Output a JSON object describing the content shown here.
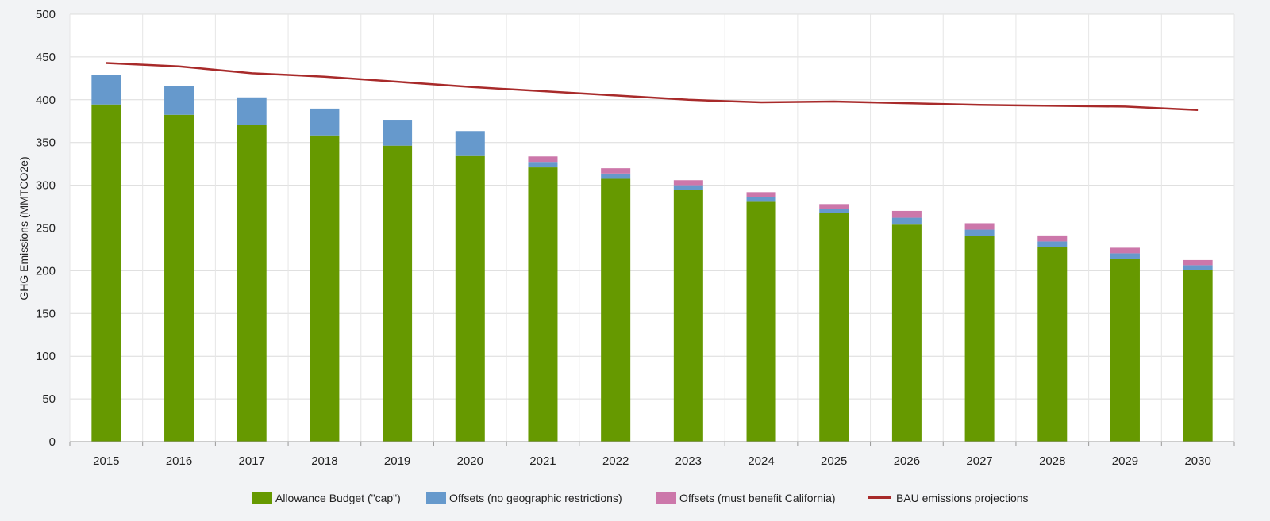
{
  "chart_data": {
    "type": "bar",
    "stacked": true,
    "title": "",
    "xlabel": "",
    "ylabel": "GHG Emissions (MMTCO2e)",
    "ylim": [
      0,
      500
    ],
    "yticks": [
      0,
      50,
      100,
      150,
      200,
      250,
      300,
      350,
      400,
      450,
      500
    ],
    "grid": true,
    "legend_position": "bottom",
    "categories": [
      "2015",
      "2016",
      "2017",
      "2018",
      "2019",
      "2020",
      "2021",
      "2022",
      "2023",
      "2024",
      "2025",
      "2026",
      "2027",
      "2028",
      "2029",
      "2030"
    ],
    "series": [
      {
        "name": "Allowance Budget (\"cap\")",
        "kind": "bar",
        "color": "#669900",
        "values": [
          394.5,
          382.4,
          370.4,
          358.3,
          346.3,
          334.2,
          320.9,
          307.5,
          294.1,
          280.7,
          267.4,
          254.0,
          240.6,
          227.3,
          213.9,
          200.5
        ]
      },
      {
        "name": "Offsets (no geographic restrictions)",
        "kind": "bar",
        "color": "#6699cc",
        "values": [
          34.5,
          33.5,
          32.4,
          31.4,
          30.3,
          29.2,
          6.4,
          6.2,
          5.9,
          5.6,
          5.3,
          8.0,
          7.5,
          7.0,
          6.5,
          6.0
        ]
      },
      {
        "name": "Offsets (must benefit California)",
        "kind": "bar",
        "color": "#cc77aa",
        "values": [
          0,
          0,
          0,
          0,
          0,
          0,
          6.4,
          6.2,
          5.9,
          5.6,
          5.3,
          8.0,
          7.5,
          7.0,
          6.5,
          6.0
        ]
      },
      {
        "name": "BAU emissions projections",
        "kind": "line",
        "color": "#a82a2a",
        "values": [
          443,
          439,
          431,
          427,
          421,
          415,
          410,
          405,
          400,
          397,
          398,
          396,
          394,
          393,
          392,
          388
        ]
      }
    ]
  }
}
